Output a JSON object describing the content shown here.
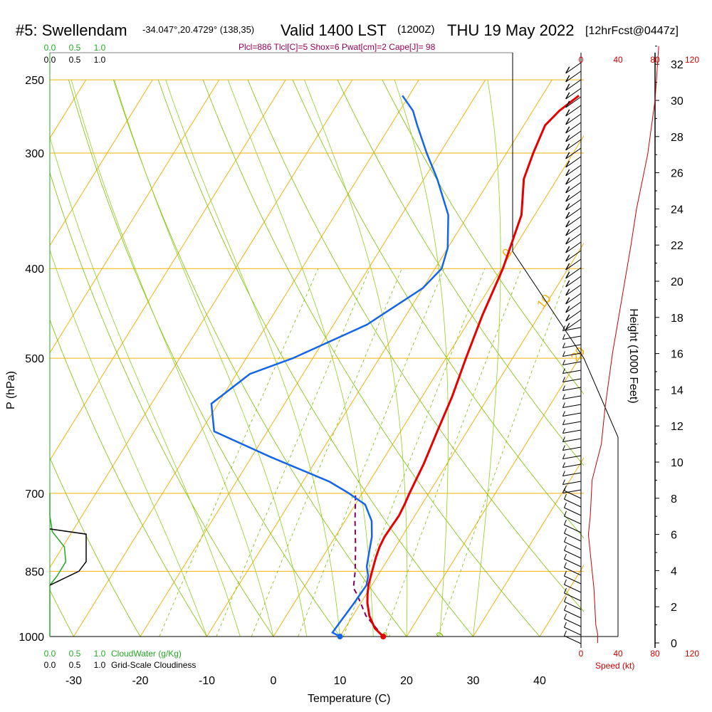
{
  "header": {
    "station": "#5: Swellendam",
    "coords": "-34.047°,20.4729° (138,35)",
    "valid": "Valid 1400 LST",
    "utc": "(1200Z)",
    "date": "THU 19 May 2022",
    "fcst": "[12hrFcst@0447z]",
    "indices": "Plcl=886 Tlcl[C]=5 Shox=6 Pwat[cm]=2 Cape[J]= 98"
  },
  "labels": {
    "pressure_axis": "P (hPa)",
    "temperature_axis": "Temperature (C)",
    "height_axis": "Height (1000 Feet)",
    "speed_label": "Speed (kt)",
    "cloudwater_label": "CloudWater (g/Kg)",
    "cloudiness_label": "Grid-Scale Cloudiness",
    "cw_ticks": [
      "0.0",
      "0.5",
      "1.0"
    ],
    "cloud_ticks": [
      "0.0",
      "0.5",
      "1.0"
    ],
    "speed_ticks": [
      "0",
      "40",
      "80",
      "120"
    ]
  },
  "colors": {
    "temperature": "#e60000",
    "dewpoint": "#1565e8",
    "parcel": "#800060",
    "isotherm": "#f2b20f",
    "dry_adiabat": "#7cc000",
    "moist_adiabat": "#90d020",
    "mixing_ratio": "#7cc000",
    "cloudwater": "#22aa22",
    "indices": "#990055",
    "speed": "#cc0000"
  },
  "chart_data": {
    "type": "skew-t",
    "pressure_ticks": [
      250,
      300,
      400,
      500,
      700,
      850,
      1000
    ],
    "temperature_ticks": [
      -30,
      -20,
      -10,
      0,
      10,
      20,
      30,
      40
    ],
    "height_ticks": [
      0,
      2,
      4,
      6,
      8,
      10,
      12,
      14,
      16,
      18,
      20,
      22,
      24,
      26,
      28,
      30,
      32
    ],
    "isotherm_labels": [
      {
        "t": 10,
        "text": "10"
      },
      {
        "t": 0,
        "text": "0"
      },
      {
        "t": -10,
        "text": "-10"
      },
      {
        "t": -20,
        "text": "-20"
      },
      {
        "t": -30,
        "text": "-30"
      },
      {
        "t": 0,
        "text": "0",
        "right": true
      },
      {
        "t": 10,
        "text": "10",
        "right": true
      },
      {
        "t": 20,
        "text": "20",
        "right": true
      },
      {
        "t": 30,
        "text": "30",
        "right": true
      }
    ],
    "mixing_ratio_labels": [
      "1",
      "2",
      "3",
      "5",
      "8",
      "12",
      "20"
    ],
    "temperature": [
      {
        "p": 1000,
        "t": 16.5
      },
      {
        "p": 980,
        "t": 14.5
      },
      {
        "p": 950,
        "t": 12.5
      },
      {
        "p": 920,
        "t": 11.0
      },
      {
        "p": 900,
        "t": 10.2
      },
      {
        "p": 880,
        "t": 9.5
      },
      {
        "p": 860,
        "t": 9.0
      },
      {
        "p": 840,
        "t": 8.5
      },
      {
        "p": 820,
        "t": 8.0
      },
      {
        "p": 800,
        "t": 7.6
      },
      {
        "p": 780,
        "t": 7.4
      },
      {
        "p": 760,
        "t": 7.5
      },
      {
        "p": 740,
        "t": 7.6
      },
      {
        "p": 720,
        "t": 7.4
      },
      {
        "p": 700,
        "t": 7.1
      },
      {
        "p": 650,
        "t": 6.5
      },
      {
        "p": 600,
        "t": 5.5
      },
      {
        "p": 550,
        "t": 4.5
      },
      {
        "p": 500,
        "t": 3.0
      },
      {
        "p": 450,
        "t": 1.5
      },
      {
        "p": 400,
        "t": 0.2
      },
      {
        "p": 350,
        "t": -2.0
      },
      {
        "p": 320,
        "t": -5.0
      },
      {
        "p": 300,
        "t": -6.0
      },
      {
        "p": 280,
        "t": -6.8
      },
      {
        "p": 270,
        "t": -6.0
      },
      {
        "p": 260,
        "t": -4.5
      }
    ],
    "dewpoint": [
      {
        "p": 1000,
        "t": 10.0
      },
      {
        "p": 990,
        "t": 8.5
      },
      {
        "p": 960,
        "t": 8.7
      },
      {
        "p": 920,
        "t": 9.0
      },
      {
        "p": 880,
        "t": 9.2
      },
      {
        "p": 860,
        "t": 8.6
      },
      {
        "p": 840,
        "t": 7.5
      },
      {
        "p": 810,
        "t": 6.5
      },
      {
        "p": 780,
        "t": 5.5
      },
      {
        "p": 750,
        "t": 4.0
      },
      {
        "p": 720,
        "t": 1.5
      },
      {
        "p": 700,
        "t": -2.0
      },
      {
        "p": 680,
        "t": -6.0
      },
      {
        "p": 640,
        "t": -17.0
      },
      {
        "p": 600,
        "t": -28.0
      },
      {
        "p": 560,
        "t": -31.0
      },
      {
        "p": 520,
        "t": -28.0
      },
      {
        "p": 500,
        "t": -23.0
      },
      {
        "p": 460,
        "t": -15.0
      },
      {
        "p": 420,
        "t": -10.0
      },
      {
        "p": 400,
        "t": -9.0
      },
      {
        "p": 380,
        "t": -10.0
      },
      {
        "p": 350,
        "t": -13.0
      },
      {
        "p": 320,
        "t": -18.0
      },
      {
        "p": 300,
        "t": -22.0
      },
      {
        "p": 280,
        "t": -26.0
      },
      {
        "p": 270,
        "t": -28.0
      },
      {
        "p": 260,
        "t": -31.0
      }
    ],
    "parcel": [
      {
        "p": 1000,
        "t": 16.5
      },
      {
        "p": 950,
        "t": 12.0
      },
      {
        "p": 900,
        "t": 8.6
      },
      {
        "p": 886,
        "t": 7.5
      },
      {
        "p": 850,
        "t": 6.2
      },
      {
        "p": 800,
        "t": 4.0
      },
      {
        "p": 750,
        "t": 1.5
      },
      {
        "p": 700,
        "t": -1.0
      }
    ],
    "surface_temperature": {
      "p": 1000,
      "t": 16.5
    },
    "surface_dewpoint": {
      "p": 1000,
      "t": 10.0
    },
    "wind_speed_profile": [
      {
        "h": 0,
        "s": 18
      },
      {
        "h": 0.5,
        "s": 18
      },
      {
        "h": 1,
        "s": 16
      },
      {
        "h": 3,
        "s": 14
      },
      {
        "h": 5,
        "s": 10
      },
      {
        "h": 6,
        "s": 8
      },
      {
        "h": 7,
        "s": 10
      },
      {
        "h": 9,
        "s": 12
      },
      {
        "h": 11,
        "s": 22
      },
      {
        "h": 13,
        "s": 26
      },
      {
        "h": 16,
        "s": 34
      },
      {
        "h": 19,
        "s": 44
      },
      {
        "h": 22,
        "s": 54
      },
      {
        "h": 24,
        "s": 60
      },
      {
        "h": 27,
        "s": 72
      },
      {
        "h": 30,
        "s": 80
      },
      {
        "h": 33,
        "s": 84
      }
    ],
    "cloud_water": [
      {
        "p": 1000,
        "v": 0
      },
      {
        "p": 880,
        "v": 0.0
      },
      {
        "p": 860,
        "v": 0.15
      },
      {
        "p": 830,
        "v": 0.33
      },
      {
        "p": 800,
        "v": 0.3
      },
      {
        "p": 770,
        "v": 0.05
      },
      {
        "p": 740,
        "v": 0.0
      },
      {
        "p": 700,
        "v": 0.0
      }
    ],
    "cloudiness": [
      {
        "p": 880,
        "v": 0.0
      },
      {
        "p": 850,
        "v": 0.6
      },
      {
        "p": 830,
        "v": 0.75
      },
      {
        "p": 800,
        "v": 0.75
      },
      {
        "p": 775,
        "v": 0.75
      },
      {
        "p": 765,
        "v": 0.0
      }
    ]
  }
}
